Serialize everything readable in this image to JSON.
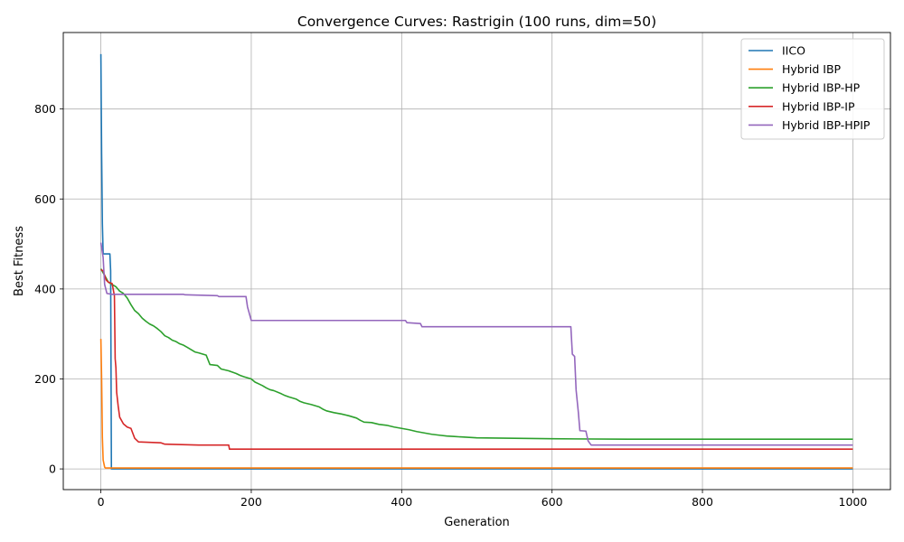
{
  "chart_data": {
    "type": "line",
    "title": "Convergence Curves: Rastrigin (100 runs, dim=50)",
    "xlabel": "Generation",
    "ylabel": "Best Fitness",
    "xlim": [
      -50,
      1050
    ],
    "ylim": [
      -46,
      970
    ],
    "xticks": [
      0,
      200,
      400,
      600,
      800,
      1000
    ],
    "yticks": [
      0,
      200,
      400,
      600,
      800
    ],
    "grid": true,
    "legend_position": "top-right",
    "series": [
      {
        "name": "IICO",
        "color": "#1f77b4",
        "points": [
          [
            0,
            922
          ],
          [
            1,
            700
          ],
          [
            2,
            545
          ],
          [
            3,
            478
          ],
          [
            12,
            478
          ],
          [
            13,
            440
          ],
          [
            14,
            0
          ],
          [
            1000,
            0
          ]
        ]
      },
      {
        "name": "Hybrid IBP",
        "color": "#ff7f0e",
        "points": [
          [
            0,
            289
          ],
          [
            1,
            200
          ],
          [
            2,
            70
          ],
          [
            3,
            20
          ],
          [
            5,
            4
          ],
          [
            6,
            2
          ],
          [
            1000,
            2
          ]
        ]
      },
      {
        "name": "Hybrid IBP-HP",
        "color": "#2ca02c",
        "points": [
          [
            0,
            445
          ],
          [
            5,
            430
          ],
          [
            10,
            415
          ],
          [
            15,
            410
          ],
          [
            20,
            405
          ],
          [
            25,
            395
          ],
          [
            30,
            390
          ],
          [
            35,
            380
          ],
          [
            40,
            365
          ],
          [
            45,
            352
          ],
          [
            50,
            345
          ],
          [
            55,
            335
          ],
          [
            60,
            328
          ],
          [
            65,
            322
          ],
          [
            70,
            318
          ],
          [
            75,
            312
          ],
          [
            80,
            305
          ],
          [
            85,
            296
          ],
          [
            90,
            292
          ],
          [
            95,
            286
          ],
          [
            100,
            283
          ],
          [
            105,
            278
          ],
          [
            110,
            275
          ],
          [
            115,
            270
          ],
          [
            120,
            265
          ],
          [
            125,
            260
          ],
          [
            130,
            258
          ],
          [
            140,
            253
          ],
          [
            145,
            232
          ],
          [
            155,
            230
          ],
          [
            160,
            222
          ],
          [
            170,
            218
          ],
          [
            175,
            215
          ],
          [
            180,
            212
          ],
          [
            185,
            208
          ],
          [
            190,
            205
          ],
          [
            200,
            200
          ],
          [
            205,
            193
          ],
          [
            210,
            189
          ],
          [
            215,
            185
          ],
          [
            220,
            180
          ],
          [
            225,
            176
          ],
          [
            230,
            174
          ],
          [
            240,
            167
          ],
          [
            245,
            163
          ],
          [
            250,
            160
          ],
          [
            260,
            155
          ],
          [
            265,
            150
          ],
          [
            270,
            147
          ],
          [
            280,
            143
          ],
          [
            290,
            138
          ],
          [
            295,
            133
          ],
          [
            300,
            129
          ],
          [
            310,
            125
          ],
          [
            320,
            122
          ],
          [
            330,
            118
          ],
          [
            340,
            113
          ],
          [
            345,
            108
          ],
          [
            350,
            104
          ],
          [
            360,
            103
          ],
          [
            370,
            99
          ],
          [
            380,
            97
          ],
          [
            390,
            93
          ],
          [
            400,
            90
          ],
          [
            410,
            87
          ],
          [
            420,
            83
          ],
          [
            430,
            80
          ],
          [
            440,
            77
          ],
          [
            450,
            75
          ],
          [
            460,
            73
          ],
          [
            470,
            72
          ],
          [
            480,
            71
          ],
          [
            490,
            70
          ],
          [
            500,
            69
          ],
          [
            550,
            68
          ],
          [
            600,
            67
          ],
          [
            700,
            66
          ],
          [
            1000,
            66
          ]
        ]
      },
      {
        "name": "Hybrid IBP-IP",
        "color": "#d62728",
        "points": [
          [
            0,
            443
          ],
          [
            3,
            440
          ],
          [
            5,
            430
          ],
          [
            7,
            420
          ],
          [
            10,
            415
          ],
          [
            15,
            412
          ],
          [
            18,
            385
          ],
          [
            19,
            245
          ],
          [
            20,
            225
          ],
          [
            21,
            170
          ],
          [
            23,
            140
          ],
          [
            25,
            115
          ],
          [
            30,
            100
          ],
          [
            35,
            93
          ],
          [
            40,
            90
          ],
          [
            45,
            68
          ],
          [
            50,
            60
          ],
          [
            80,
            58
          ],
          [
            85,
            55
          ],
          [
            130,
            53
          ],
          [
            170,
            53
          ],
          [
            171,
            44
          ],
          [
            1000,
            44
          ]
        ]
      },
      {
        "name": "Hybrid IBP-HPIP",
        "color": "#9467bd",
        "points": [
          [
            0,
            503
          ],
          [
            3,
            470
          ],
          [
            5,
            410
          ],
          [
            8,
            390
          ],
          [
            15,
            388
          ],
          [
            110,
            388
          ],
          [
            112,
            387
          ],
          [
            155,
            385
          ],
          [
            157,
            383
          ],
          [
            193,
            383
          ],
          [
            195,
            360
          ],
          [
            200,
            330
          ],
          [
            405,
            330
          ],
          [
            407,
            325
          ],
          [
            425,
            323
          ],
          [
            427,
            316
          ],
          [
            625,
            316
          ],
          [
            627,
            255
          ],
          [
            630,
            250
          ],
          [
            632,
            175
          ],
          [
            635,
            125
          ],
          [
            637,
            85
          ],
          [
            645,
            84
          ],
          [
            648,
            62
          ],
          [
            652,
            53
          ],
          [
            1000,
            53
          ]
        ]
      }
    ]
  }
}
